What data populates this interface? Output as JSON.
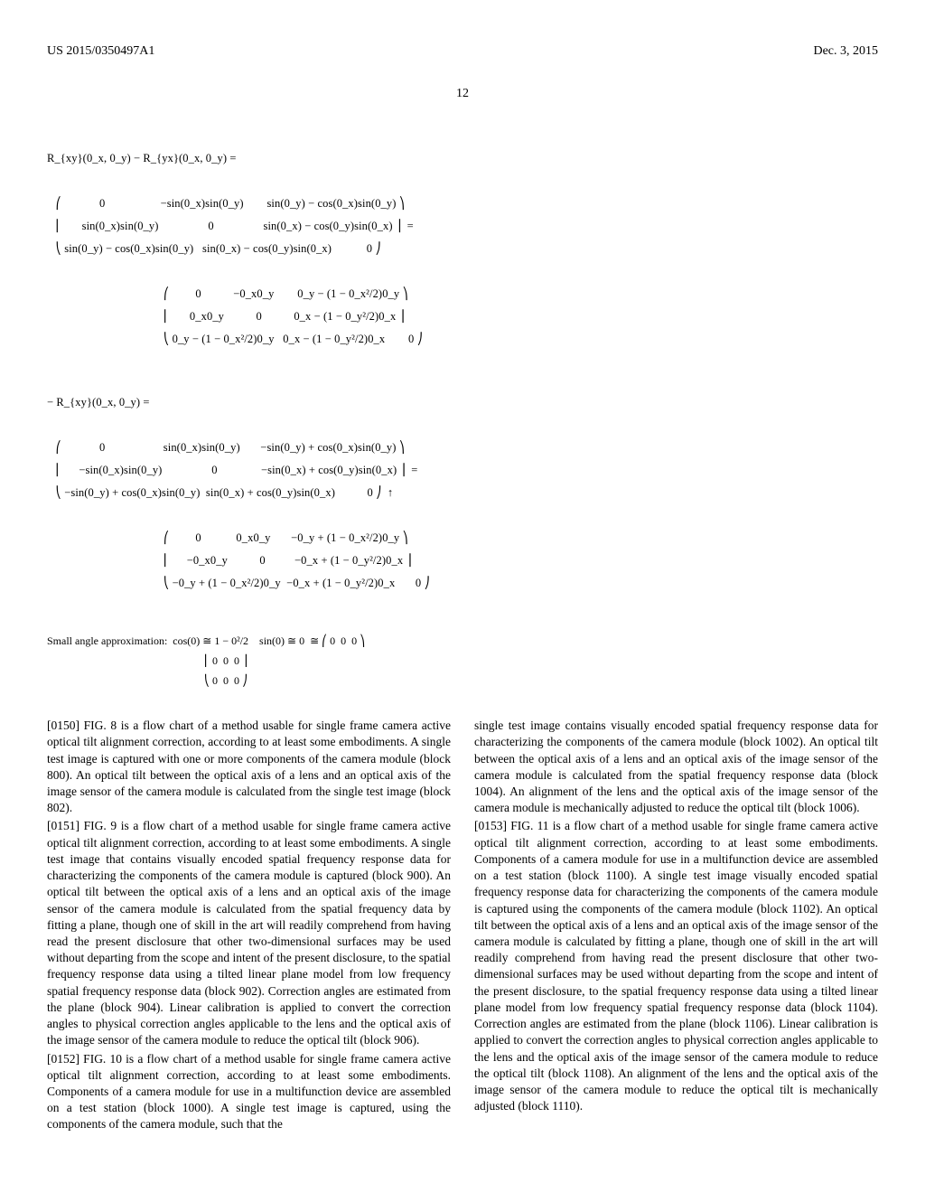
{
  "header": {
    "pub_num": "US 2015/0350497A1",
    "date": "Dec. 3, 2015"
  },
  "page_number": "12",
  "math": {
    "line1": "R_{xy}(0_x, 0_y) − R_{yx}(0_x, 0_y) =",
    "matrix1_row1": "            0                   −sin(0_x)sin(0_y)        sin(0_y) − cos(0_x)sin(0_y)",
    "matrix1_row2": "      sin(0_x)sin(0_y)                 0                 sin(0_x) − cos(0_y)sin(0_x)",
    "matrix1_row3": "sin(0_y) − cos(0_x)sin(0_y)   sin(0_x) − cos(0_y)sin(0_x)            0",
    "approx_row1a": "        0           −0_x0_y        0_y − (1 − 0_x²/2)0_y",
    "approx_row1b": "      0_x0_y           0           0_x − (1 − 0_y²/2)0_x",
    "approx_row1c": "0_y − (1 − 0_x²/2)0_y   0_x − (1 − 0_y²/2)0_x        0",
    "line2": "− R_{xy}(0_x, 0_y) =",
    "matrix2_row1": "            0                    sin(0_x)sin(0_y)       −sin(0_y) + cos(0_x)sin(0_y)",
    "matrix2_row2": "     −sin(0_x)sin(0_y)                 0               −sin(0_x) + cos(0_y)sin(0_x)",
    "matrix2_row3": "−sin(0_y) + cos(0_x)sin(0_y)  sin(0_x) + cos(0_y)sin(0_x)           0",
    "approx_row2a": "        0            0_x0_y       −0_y + (1 − 0_x²/2)0_y",
    "approx_row2b": "     −0_x0_y           0          −0_x + (1 − 0_y²/2)0_x",
    "approx_row2c": "−0_y + (1 − 0_x²/2)0_y  −0_x + (1 − 0_y²/2)0_x       0",
    "small_angle": "Small angle approximation:  cos(0) ≅ 1 − 0²/2    sin(0) ≅ 0  ≅",
    "zero_matrix_r1": "0  0  0",
    "zero_matrix_r2": "0  0  0",
    "zero_matrix_r3": "0  0  0"
  },
  "paragraphs": {
    "p0150_num": "[0150]",
    "p0150": "    FIG. 8 is a flow chart of a method usable for single frame camera active optical tilt alignment correction, according to at least some embodiments. A single test image is captured with one or more components of the camera module (block 800). An optical tilt between the optical axis of a lens and an optical axis of the image sensor of the camera module is calculated from the single test image (block 802).",
    "p0151_num": "[0151]",
    "p0151": "    FIG. 9 is a flow chart of a method usable for single frame camera active optical tilt alignment correction, according to at least some embodiments. A single test image that contains visually encoded spatial frequency response data for characterizing the components of the camera module is captured (block 900). An optical tilt between the optical axis of a lens and an optical axis of the image sensor of the camera module is calculated from the spatial frequency data by fitting a plane, though one of skill in the art will readily comprehend from having read the present disclosure that other two-dimensional surfaces may be used without departing from the scope and intent of the present disclosure, to the spatial frequency response data using a tilted linear plane model from low frequency spatial frequency response data (block 902). Correction angles are estimated from the plane (block 904). Linear calibration is applied to convert the correction angles to physical correction angles applicable to the lens and the optical axis of the image sensor of the camera module to reduce the optical tilt (block 906).",
    "p0152_num": "[0152]",
    "p0152": "    FIG. 10 is a flow chart of a method usable for single frame camera active optical tilt alignment correction, according to at least some embodiments. Components of a camera module for use in a multifunction device are assembled on a test station (block 1000). A single test image is captured, using the components of the camera module, such that the",
    "p0152b": "single test image contains visually encoded spatial frequency response data for characterizing the components of the camera module (block 1002). An optical tilt between the optical axis of a lens and an optical axis of the image sensor of the camera module is calculated from the spatial frequency response data (block 1004). An alignment of the lens and the optical axis of the image sensor of the camera module is mechanically adjusted to reduce the optical tilt (block 1006).",
    "p0153_num": "[0153]",
    "p0153": "    FIG. 11 is a flow chart of a method usable for single frame camera active optical tilt alignment correction, according to at least some embodiments. Components of a camera module for use in a multifunction device are assembled on a test station (block 1100). A single test image visually encoded spatial frequency response data for characterizing the components of the camera module is captured using the components of the camera module (block 1102). An optical tilt between the optical axis of a lens and an optical axis of the image sensor of the camera module is calculated by fitting a plane, though one of skill in the art will readily comprehend from having read the present disclosure that other two-dimensional surfaces may be used without departing from the scope and intent of the present disclosure, to the spatial frequency response data using a tilted linear plane model from low frequency spatial frequency response data (block 1104). Correction angles are estimated from the plane (block 1106). Linear calibration is applied to convert the correction angles to physical correction angles applicable to the lens and the optical axis of the image sensor of the camera module to reduce the optical tilt (block 1108). An alignment of the lens and the optical axis of the image sensor of the camera module to reduce the optical tilt is mechanically adjusted (block 1110)."
  }
}
